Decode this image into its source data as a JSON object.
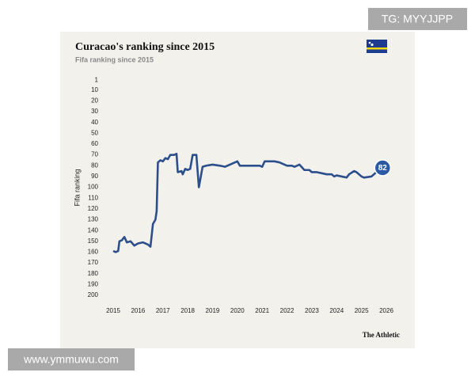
{
  "chart_data": {
    "type": "line",
    "title": "Curacao's ranking since 2015",
    "subtitle": "Fifa ranking since 2015",
    "y_label": "Fifa ranking",
    "source": "The Athletic",
    "x": [
      2015.0,
      2015.1,
      2015.2,
      2015.25,
      2015.35,
      2015.45,
      2015.55,
      2015.7,
      2015.85,
      2016.0,
      2016.2,
      2016.4,
      2016.5,
      2016.6,
      2016.7,
      2016.75,
      2016.8,
      2016.9,
      2017.0,
      2017.1,
      2017.2,
      2017.3,
      2017.45,
      2017.55,
      2017.6,
      2017.75,
      2017.8,
      2017.9,
      2018.0,
      2018.1,
      2018.2,
      2018.35,
      2018.45,
      2018.6,
      2018.75,
      2019.0,
      2019.3,
      2019.5,
      2019.8,
      2020.0,
      2020.1,
      2020.5,
      2020.9,
      2021.0,
      2021.1,
      2021.5,
      2021.7,
      2022.0,
      2022.2,
      2022.3,
      2022.5,
      2022.7,
      2022.9,
      2023.0,
      2023.2,
      2023.4,
      2023.6,
      2023.8,
      2023.9,
      2024.0,
      2024.2,
      2024.4,
      2024.5,
      2024.7,
      2024.8,
      2025.0,
      2025.1,
      2025.4,
      2025.6,
      2025.75,
      2025.85
    ],
    "values": [
      159,
      160,
      159,
      150,
      149,
      146,
      151,
      150,
      154,
      152,
      151,
      153,
      155,
      134,
      130,
      122,
      77,
      75,
      76,
      73,
      74,
      70,
      70,
      69,
      86,
      85,
      88,
      83,
      84,
      83,
      70,
      70,
      100,
      81,
      80,
      79,
      80,
      81,
      78,
      76,
      80,
      80,
      80,
      81,
      76,
      76,
      77,
      80,
      80,
      81,
      79,
      84,
      84,
      86,
      86,
      87,
      88,
      88,
      90,
      89,
      90,
      91,
      88,
      85,
      86,
      90,
      91,
      90,
      86,
      84,
      82
    ],
    "color": "#2c4f8c",
    "xlim": [
      2015,
      2026
    ],
    "xticks": [
      2015,
      2016,
      2017,
      2018,
      2019,
      2020,
      2021,
      2022,
      2023,
      2024,
      2025,
      2026
    ],
    "ylim": [
      1,
      200
    ],
    "yticks": [
      1,
      10,
      20,
      30,
      40,
      50,
      60,
      70,
      80,
      90,
      100,
      110,
      120,
      130,
      140,
      150,
      160,
      170,
      180,
      190,
      200
    ],
    "invert_y": true,
    "grid": false
  },
  "watermarks": {
    "top_right": "TG: MYYJJPP",
    "bottom_left": "www.ymmuwu.com"
  }
}
